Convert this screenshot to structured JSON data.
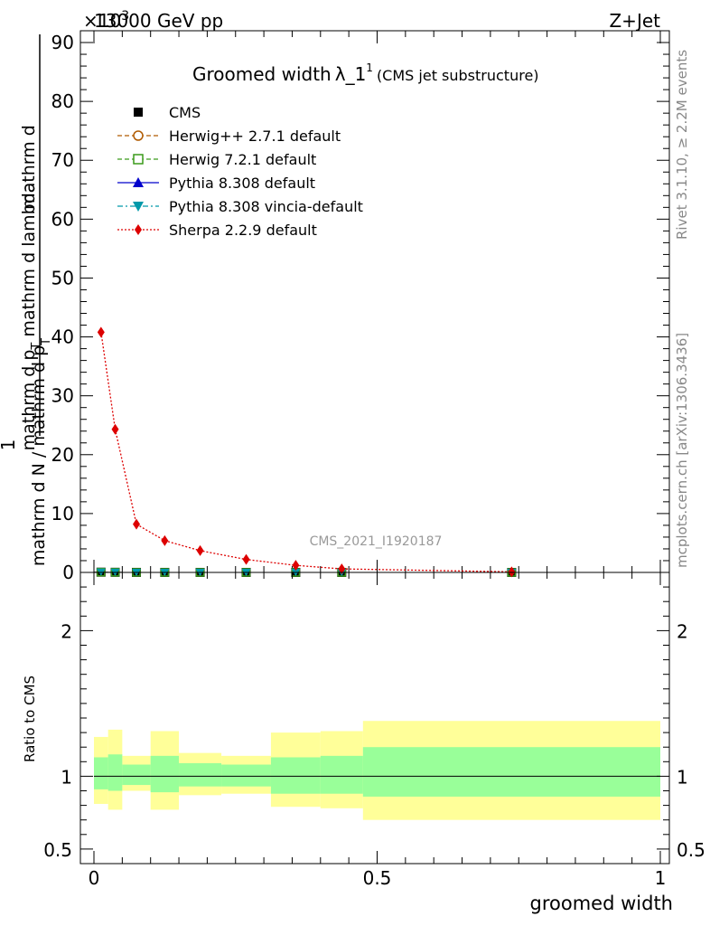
{
  "header": {
    "energy": "13000 GeV pp",
    "process": "Z+Jet",
    "exponent_stub": "×10",
    "exponent_sup": "3"
  },
  "side_labels": {
    "rivet": "Rivet 3.1.10, ≥ 2.2M events",
    "mcplots": "mcplots.cern.ch [arXiv:1306.3436]"
  },
  "watermark": "CMS_2021_I1920187",
  "chart_data": [
    {
      "type": "line",
      "title_main": "Groomed width",
      "title_lambda": "λ_1",
      "title_sup": "1",
      "title_sub": "(CMS jet substructure)",
      "ylabel_top": "1",
      "ylabel_bottom": "mathrm d N / mathrm d p_T mathrm d lambda",
      "ylabel_frac_top": "mathrm d",
      "ylabel_frac_bottom": "mathrm d p_T mathrm d p_T mathrm d lambda",
      "ylim": [
        0,
        92
      ],
      "yticks": [
        "0",
        "10",
        "20",
        "30",
        "40",
        "50",
        "60",
        "70",
        "80",
        "90"
      ],
      "legend": [
        {
          "name": "CMS",
          "color": "#000000",
          "marker": "square-filled",
          "line": "none"
        },
        {
          "name": "Herwig++ 2.7.1 default",
          "color": "#b05a00",
          "marker": "circle-open",
          "line": "dashed"
        },
        {
          "name": "Herwig 7.2.1 default",
          "color": "#3a9a1a",
          "marker": "square-open",
          "line": "dashed"
        },
        {
          "name": "Pythia 8.308 default",
          "color": "#0000cc",
          "marker": "triangle-up",
          "line": "solid"
        },
        {
          "name": "Pythia 8.308 vincia-default",
          "color": "#0099aa",
          "marker": "triangle-down",
          "line": "dashdot"
        },
        {
          "name": "Sherpa 2.2.9 default",
          "color": "#dd0000",
          "marker": "diamond",
          "line": "dotted"
        }
      ],
      "bins": [
        {
          "lo": 0.0,
          "hi": 0.025,
          "x": 0.0125
        },
        {
          "lo": 0.025,
          "hi": 0.05,
          "x": 0.0375
        },
        {
          "lo": 0.05,
          "hi": 0.1,
          "x": 0.075
        },
        {
          "lo": 0.1,
          "hi": 0.15,
          "x": 0.125
        },
        {
          "lo": 0.15,
          "hi": 0.225,
          "x": 0.1875
        },
        {
          "lo": 0.225,
          "hi": 0.3125,
          "x": 0.2688
        },
        {
          "lo": 0.3125,
          "hi": 0.4,
          "x": 0.3563
        },
        {
          "lo": 0.4,
          "hi": 0.475,
          "x": 0.4375
        },
        {
          "lo": 0.475,
          "hi": 1.0,
          "x": 0.7375
        }
      ],
      "series": [
        {
          "name": "CMS",
          "values": [
            0.04,
            0.024,
            0.008,
            0.005,
            0.0035,
            0.002,
            0.0012,
            0.0006,
            0.0001
          ]
        },
        {
          "name": "Sherpa 2.2.9 default",
          "values": [
            40.8,
            24.3,
            8.2,
            5.4,
            3.7,
            2.2,
            1.2,
            0.6,
            0.1
          ]
        }
      ]
    },
    {
      "type": "area",
      "ylabel": "Ratio to CMS",
      "xlabel": "groomed width",
      "ylim": [
        0.4,
        2.4
      ],
      "yticks": [
        {
          "v": 0.5,
          "label": "0.5"
        },
        {
          "v": 1,
          "label": "1"
        },
        {
          "v": 2,
          "label": "2"
        }
      ],
      "xticks": [
        {
          "v": 0,
          "label": "0"
        },
        {
          "v": 0.5,
          "label": "0.5"
        },
        {
          "v": 1,
          "label": "1"
        }
      ],
      "band_colors": {
        "inner": "#99ff99",
        "outer": "#ffff99"
      },
      "bands": [
        {
          "lo": 0.0,
          "hi": 0.025,
          "in_lo": 0.91,
          "in_hi": 1.13,
          "out_lo": 0.81,
          "out_hi": 1.27
        },
        {
          "lo": 0.025,
          "hi": 0.05,
          "in_lo": 0.9,
          "in_hi": 1.15,
          "out_lo": 0.77,
          "out_hi": 1.32
        },
        {
          "lo": 0.05,
          "hi": 0.1,
          "in_lo": 0.94,
          "in_hi": 1.08,
          "out_lo": 0.9,
          "out_hi": 1.14
        },
        {
          "lo": 0.1,
          "hi": 0.15,
          "in_lo": 0.89,
          "in_hi": 1.14,
          "out_lo": 0.77,
          "out_hi": 1.31
        },
        {
          "lo": 0.15,
          "hi": 0.225,
          "in_lo": 0.93,
          "in_hi": 1.09,
          "out_lo": 0.87,
          "out_hi": 1.16
        },
        {
          "lo": 0.225,
          "hi": 0.3125,
          "in_lo": 0.93,
          "in_hi": 1.08,
          "out_lo": 0.88,
          "out_hi": 1.14
        },
        {
          "lo": 0.3125,
          "hi": 0.4,
          "in_lo": 0.88,
          "in_hi": 1.13,
          "out_lo": 0.79,
          "out_hi": 1.3
        },
        {
          "lo": 0.4,
          "hi": 0.475,
          "in_lo": 0.88,
          "in_hi": 1.14,
          "out_lo": 0.78,
          "out_hi": 1.31
        },
        {
          "lo": 0.475,
          "hi": 1.0,
          "in_lo": 0.86,
          "in_hi": 1.2,
          "out_lo": 0.7,
          "out_hi": 1.38
        }
      ],
      "ratio_line": 1.0
    }
  ]
}
